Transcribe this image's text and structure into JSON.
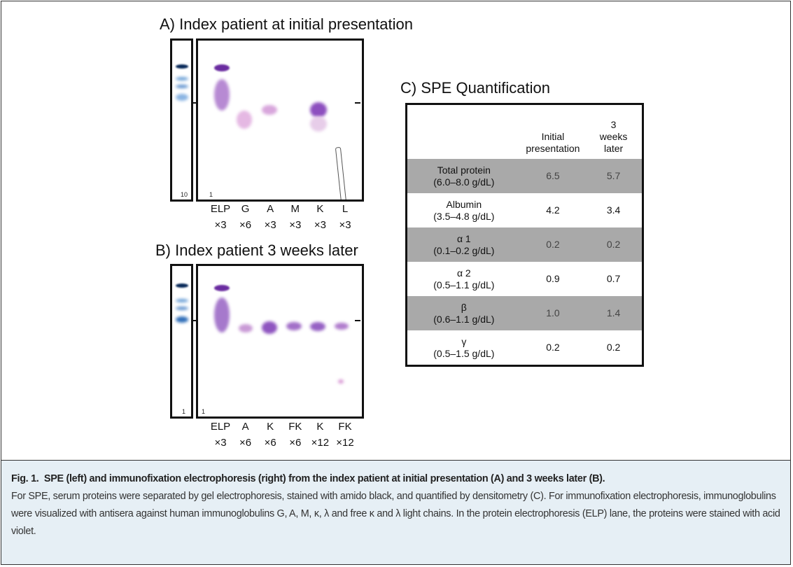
{
  "panels": [
    {
      "title": "A) Index patient at initial presentation",
      "spe_label": "10",
      "ife_label": "1",
      "lanes": [
        {
          "name": "ELP",
          "dilution": "×3"
        },
        {
          "name": "G",
          "dilution": "×6"
        },
        {
          "name": "A",
          "dilution": "×3"
        },
        {
          "name": "M",
          "dilution": "×3"
        },
        {
          "name": "K",
          "dilution": "×3"
        },
        {
          "name": "L",
          "dilution": "×3"
        }
      ]
    },
    {
      "title": "B) Index patient 3 weeks later",
      "spe_label": "1",
      "ife_label": "1",
      "lanes": [
        {
          "name": "ELP",
          "dilution": "×3"
        },
        {
          "name": "A",
          "dilution": "×6"
        },
        {
          "name": "K",
          "dilution": "×6"
        },
        {
          "name": "FK",
          "dilution": "×6"
        },
        {
          "name": "K",
          "dilution": "×12"
        },
        {
          "name": "FK",
          "dilution": "×12"
        }
      ]
    }
  ],
  "table": {
    "title": "C) SPE Quantification",
    "header": [
      "Initial presentation",
      "3 weeks later"
    ],
    "rows": [
      {
        "name": "Total protein",
        "range": "(6.0–8.0 g/dL)",
        "values": [
          "6.5",
          "5.7"
        ]
      },
      {
        "name": "Albumin",
        "range": "(3.5–4.8 g/dL)",
        "values": [
          "4.2",
          "3.4"
        ]
      },
      {
        "name": "α 1",
        "range": "(0.1–0.2 g/dL)",
        "values": [
          "0.2",
          "0.2"
        ]
      },
      {
        "name": "α 2",
        "range": "(0.5–1.1 g/dL)",
        "values": [
          "0.9",
          "0.7"
        ]
      },
      {
        "name": "β",
        "range": "(0.6–1.1 g/dL)",
        "values": [
          "1.0",
          "1.4"
        ]
      },
      {
        "name": "γ",
        "range": "(0.5–1.5 g/dL)",
        "values": [
          "0.2",
          "0.2"
        ]
      }
    ]
  },
  "caption": {
    "label": "Fig. 1.",
    "title": "SPE (left) and immunofixation electrophoresis (right) from the index patient at initial presentation (A) and 3 weeks later (B).",
    "body": "For SPE, serum proteins were separated by gel electrophoresis, stained with amido black, and quantified by densitometry (C). For immunofixation electrophoresis, immunoglobulins were visualized with antisera against human immunoglobulins G, A, M, κ, λ and free κ and λ light chains. In the protein electrophoresis (ELP) lane, the proteins were stained with acid violet."
  }
}
